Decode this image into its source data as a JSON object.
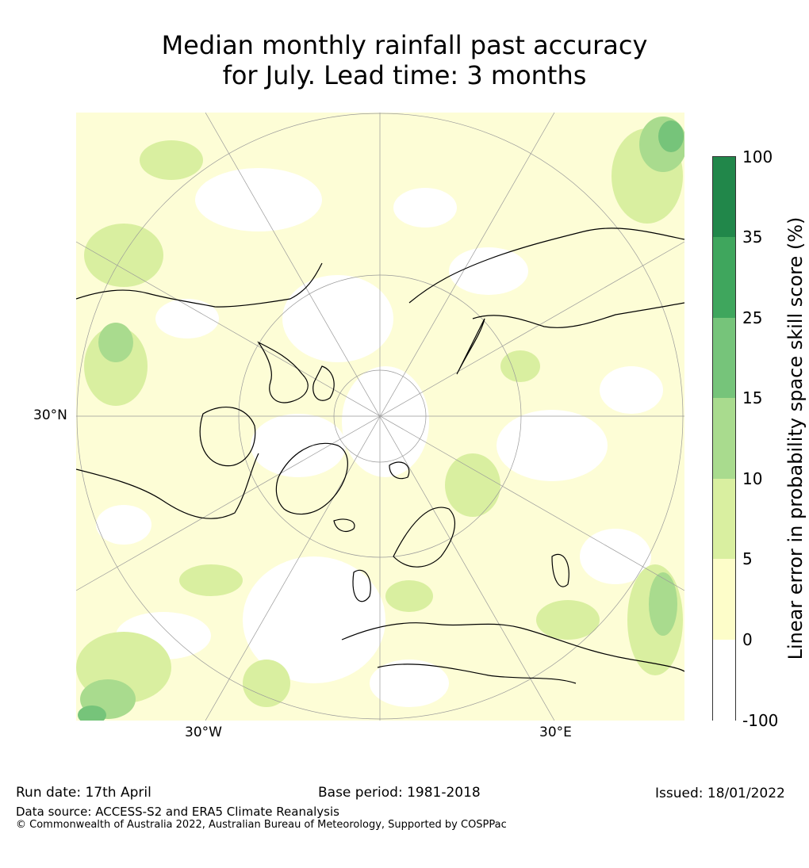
{
  "title_line1": "Median monthly rainfall past accuracy",
  "title_line2": "for July. Lead time: 3 months",
  "map": {
    "projection": "north polar stereographic",
    "graticule_labels": {
      "left": "30°N",
      "bottom_left": "30°W",
      "bottom_right": "30°E"
    }
  },
  "colorbar": {
    "title": "Linear error in probability space skill score (%)",
    "ticks": [
      "100",
      "35",
      "25",
      "15",
      "10",
      "5",
      "0",
      "-100"
    ],
    "colors": [
      "#21874a",
      "#3fa65d",
      "#76c47a",
      "#a9db8e",
      "#d9efa0",
      "#fdfdc9",
      "#ffffff"
    ]
  },
  "footer": {
    "run_date": "Run date: 17th April",
    "base_period": "Base period: 1981-2018",
    "issued": "Issued: 18/01/2022",
    "data_source": "Data source: ACCESS-S2 and ERA5 Climate Reanalysis",
    "copyright": "© Commonwealth of Australia 2022, Australian Bureau of Meteorology, Supported by COSPPac"
  }
}
